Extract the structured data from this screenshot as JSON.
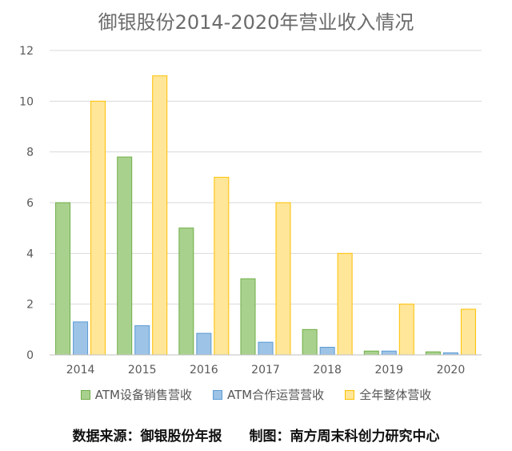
{
  "chart_data": {
    "type": "bar",
    "title": "御银股份2014-2020年营业收入情况",
    "categories": [
      "2014",
      "2015",
      "2016",
      "2017",
      "2018",
      "2019",
      "2020"
    ],
    "series": [
      {
        "name": "ATM设备销售营收",
        "values": [
          6.0,
          7.8,
          5.0,
          3.0,
          1.0,
          0.15,
          0.12
        ],
        "fill": "#a9d18e",
        "stroke": "#70ad47"
      },
      {
        "name": "ATM合作运营营收",
        "values": [
          1.3,
          1.15,
          0.85,
          0.5,
          0.3,
          0.15,
          0.08
        ],
        "fill": "#9dc3e6",
        "stroke": "#5b9bd5"
      },
      {
        "name": "全年整体营收",
        "values": [
          10.0,
          11.0,
          7.0,
          6.0,
          4.0,
          2.0,
          1.8
        ],
        "fill": "#ffe699",
        "stroke": "#ffc000"
      }
    ],
    "y_ticks": [
      "0",
      "2",
      "4",
      "6",
      "8",
      "10",
      "12"
    ],
    "ylim": [
      0,
      12
    ],
    "grid": true,
    "legend_position": "bottom"
  },
  "footer": {
    "source": "数据来源：御银股份年报",
    "credit": "制图：南方周末科创力研究中心"
  }
}
